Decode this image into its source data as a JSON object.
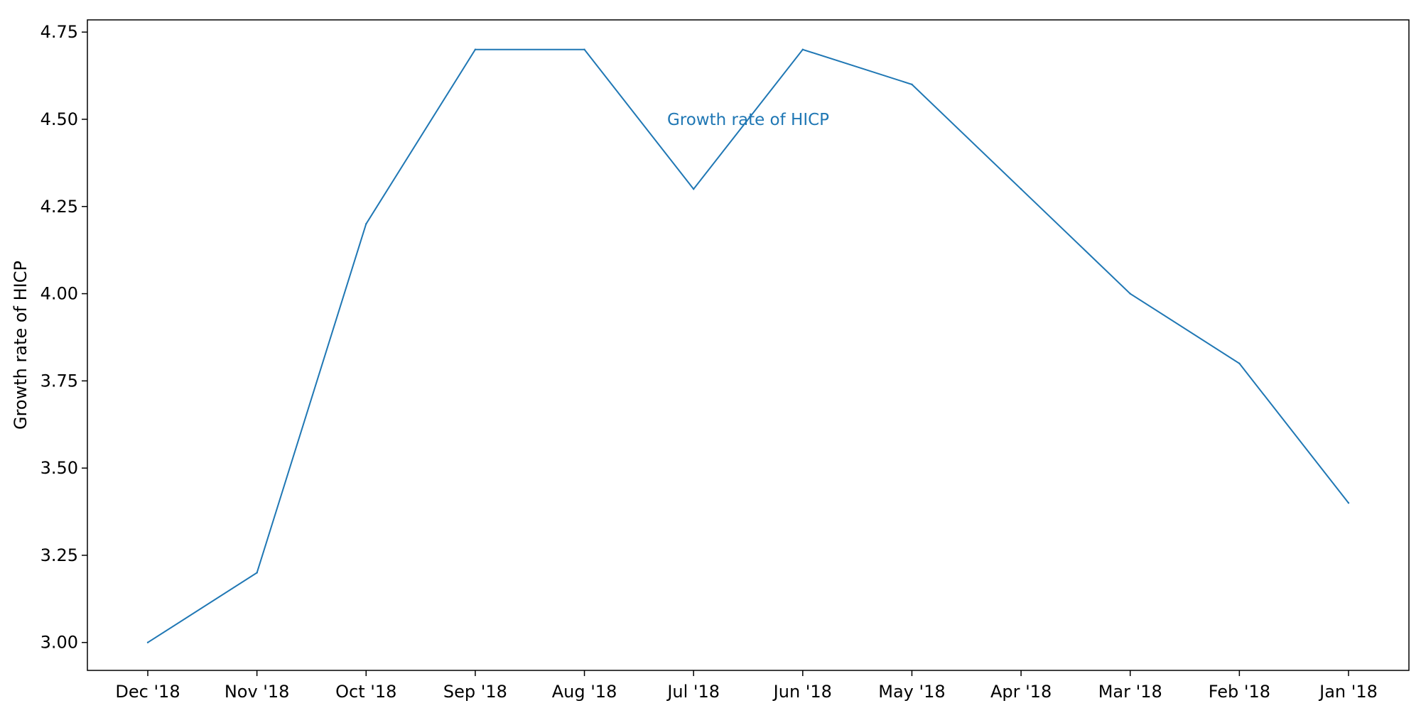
{
  "chart_data": {
    "type": "line",
    "categories": [
      "Dec '18",
      "Nov '18",
      "Oct '18",
      "Sep '18",
      "Aug '18",
      "Jul '18",
      "Jun '18",
      "May '18",
      "Apr '18",
      "Mar '18",
      "Feb '18",
      "Jan '18"
    ],
    "series": [
      {
        "name": "Growth rate of HICP",
        "values": [
          3.0,
          3.2,
          4.2,
          4.7,
          4.7,
          4.3,
          4.7,
          4.6,
          4.3,
          4.0,
          3.8,
          3.4
        ],
        "color": "#1f77b4"
      }
    ],
    "title": "",
    "xlabel": "",
    "ylabel": "Growth rate of HICP",
    "ylim": [
      2.92,
      4.785
    ],
    "yticks": [
      3.0,
      3.25,
      3.5,
      3.75,
      4.0,
      4.25,
      4.5,
      4.75
    ],
    "ytick_labels": [
      "3.00",
      "3.25",
      "3.50",
      "3.75",
      "4.00",
      "4.25",
      "4.50",
      "4.75"
    ],
    "grid": false,
    "annotation": {
      "text": "Growth rate of HICP",
      "color": "#1f77b4"
    }
  }
}
